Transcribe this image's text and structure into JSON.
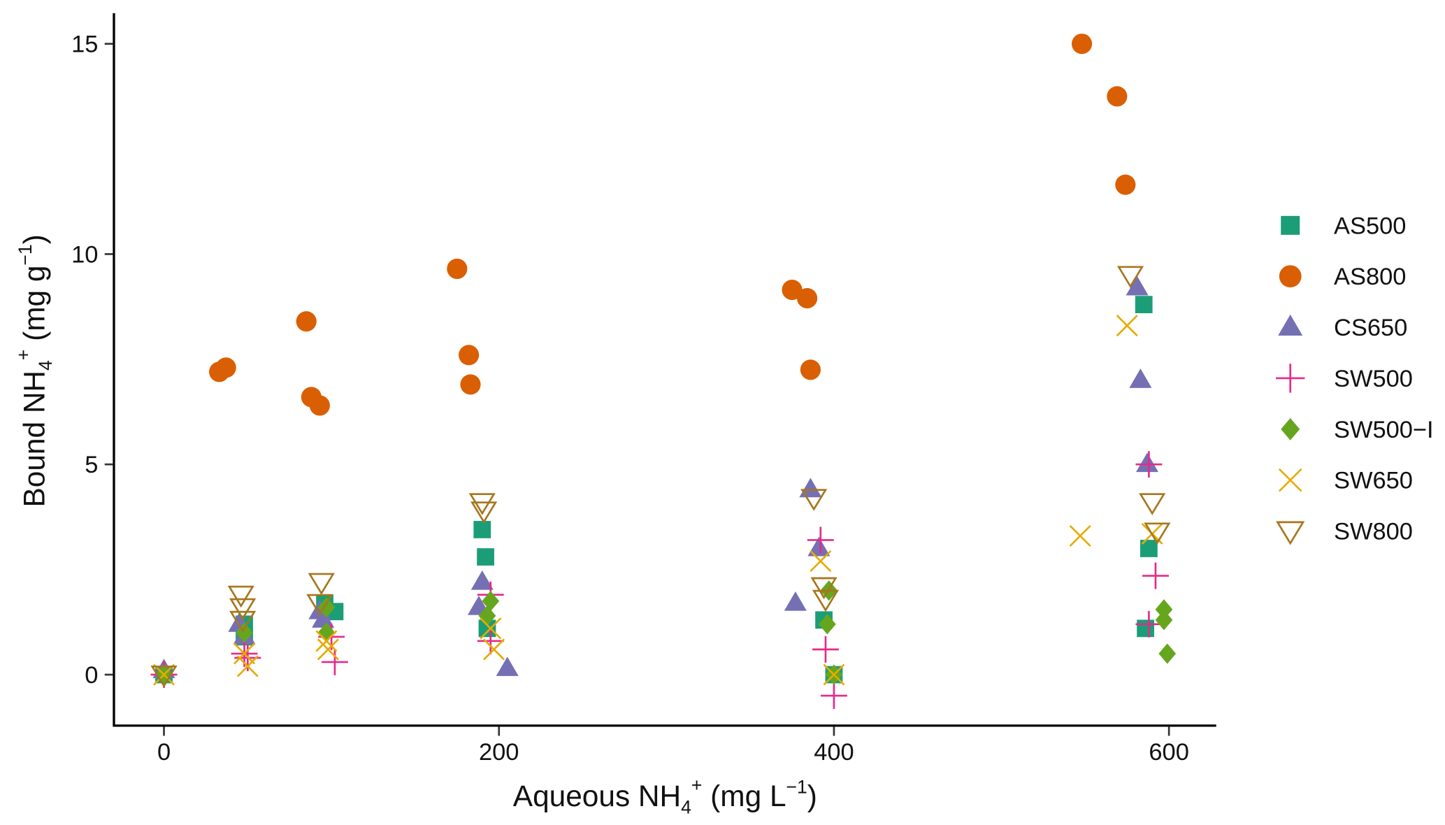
{
  "chart_data": {
    "type": "scatter",
    "title": "",
    "xlabel": "Aqueous NH4+ (mg L-1)",
    "ylabel": "Bound NH4+ (mg g-1)",
    "xlabel_parts": {
      "pre": "Aqueous  NH",
      "sub": "4",
      "sup": "+",
      "post": " (mg L",
      "sup2": "−1",
      "end": ")"
    },
    "ylabel_parts": {
      "pre": "Bound  NH",
      "sub": "4",
      "sup": "+",
      "post": " (mg g",
      "sup2": "−1",
      "end": ")"
    },
    "xlim": [
      -15,
      630
    ],
    "ylim": [
      -1.2,
      15.7
    ],
    "xticks": [
      0,
      200,
      400,
      600
    ],
    "yticks": [
      0,
      5,
      10,
      15
    ],
    "legend_position": "right",
    "grid": false,
    "series": [
      {
        "name": "AS500",
        "shape": "square",
        "color": "#1b9e77",
        "points": [
          [
            0,
            0
          ],
          [
            48,
            1.2
          ],
          [
            48,
            0.9
          ],
          [
            96,
            1.7
          ],
          [
            102,
            1.5
          ],
          [
            190,
            3.45
          ],
          [
            192,
            2.8
          ],
          [
            193,
            1.1
          ],
          [
            394,
            1.3
          ],
          [
            400,
            0
          ],
          [
            585,
            8.8
          ],
          [
            588,
            3.0
          ],
          [
            586,
            1.1
          ]
        ]
      },
      {
        "name": "AS800",
        "shape": "circle",
        "color": "#d95f02",
        "points": [
          [
            33,
            7.2
          ],
          [
            37,
            7.3
          ],
          [
            85,
            8.4
          ],
          [
            88,
            6.6
          ],
          [
            93,
            6.4
          ],
          [
            175,
            9.65
          ],
          [
            182,
            7.6
          ],
          [
            183,
            6.9
          ],
          [
            375,
            9.15
          ],
          [
            384,
            8.95
          ],
          [
            386,
            7.25
          ],
          [
            548,
            15.0
          ],
          [
            569,
            13.75
          ],
          [
            574,
            11.65
          ]
        ]
      },
      {
        "name": "CS650",
        "shape": "triangle",
        "color": "#7570b3",
        "points": [
          [
            0,
            0.1
          ],
          [
            45,
            1.2
          ],
          [
            48,
            0.9
          ],
          [
            93,
            1.5
          ],
          [
            95,
            1.3
          ],
          [
            190,
            2.2
          ],
          [
            188,
            1.6
          ],
          [
            205,
            0.15
          ],
          [
            377,
            1.7
          ],
          [
            386,
            4.4
          ],
          [
            391,
            3.0
          ],
          [
            581,
            9.2
          ],
          [
            583,
            7.0
          ],
          [
            587,
            5.0
          ]
        ]
      },
      {
        "name": "SW500",
        "shape": "plus",
        "color": "#e7298a",
        "points": [
          [
            0,
            0
          ],
          [
            48,
            0.5
          ],
          [
            50,
            0.4
          ],
          [
            100,
            0.9
          ],
          [
            102,
            0.3
          ],
          [
            195,
            1.9
          ],
          [
            195,
            0.8
          ],
          [
            392,
            3.2
          ],
          [
            395,
            0.6
          ],
          [
            400,
            -0.5
          ],
          [
            588,
            5.0
          ],
          [
            592,
            2.35
          ],
          [
            588,
            1.2
          ]
        ]
      },
      {
        "name": "SW500−I",
        "shape": "diamond",
        "color": "#66a61e",
        "points": [
          [
            0,
            0
          ],
          [
            48,
            1.0
          ],
          [
            97,
            1.6
          ],
          [
            97,
            1.0
          ],
          [
            195,
            1.75
          ],
          [
            193,
            1.4
          ],
          [
            397,
            2.0
          ],
          [
            396,
            1.2
          ],
          [
            400,
            0
          ],
          [
            597,
            1.55
          ],
          [
            597,
            1.3
          ],
          [
            599,
            0.5
          ]
        ]
      },
      {
        "name": "SW650",
        "shape": "cross",
        "color": "#e6ab02",
        "points": [
          [
            0,
            0
          ],
          [
            48,
            0.5
          ],
          [
            50,
            0.2
          ],
          [
            97,
            0.8
          ],
          [
            98,
            0.6
          ],
          [
            195,
            1.1
          ],
          [
            197,
            0.6
          ],
          [
            392,
            2.7
          ],
          [
            400,
            0
          ],
          [
            547,
            3.3
          ],
          [
            575,
            8.3
          ],
          [
            590,
            3.35
          ]
        ]
      },
      {
        "name": "SW800",
        "shape": "down-triangle",
        "color": "#a6761d",
        "points": [
          [
            0,
            0
          ],
          [
            46,
            1.9
          ],
          [
            47,
            1.6
          ],
          [
            47,
            1.3
          ],
          [
            94,
            2.2
          ],
          [
            93,
            1.7
          ],
          [
            190,
            4.1
          ],
          [
            191,
            3.9
          ],
          [
            388,
            4.2
          ],
          [
            394,
            2.1
          ],
          [
            395,
            1.8
          ],
          [
            577,
            9.5
          ],
          [
            590,
            4.1
          ],
          [
            593,
            3.4
          ]
        ]
      }
    ]
  }
}
